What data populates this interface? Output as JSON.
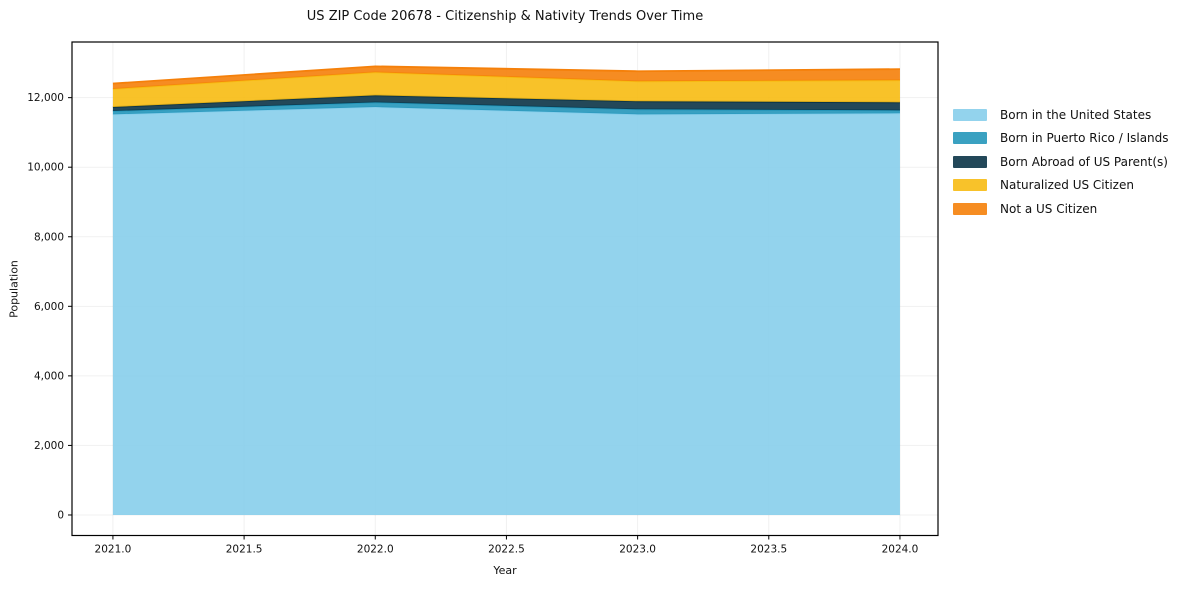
{
  "chart_data": {
    "type": "area",
    "stacked": true,
    "title": "US ZIP Code 20678 - Citizenship & Nativity Trends Over Time",
    "xlabel": "Year",
    "ylabel": "Population",
    "x": [
      2021,
      2022,
      2023,
      2024
    ],
    "series": [
      {
        "name": "Born in the United States",
        "color": "#87ceeb",
        "values": [
          11520,
          11730,
          11520,
          11550
        ]
      },
      {
        "name": "Born in Puerto Rico / Islands",
        "color": "#2496ba",
        "values": [
          95,
          135,
          145,
          85
        ]
      },
      {
        "name": "Born Abroad of US Parent(s)",
        "color": "#0b3447",
        "values": [
          115,
          200,
          230,
          230
        ]
      },
      {
        "name": "Naturalized US Citizen",
        "color": "#f7bb12",
        "values": [
          520,
          665,
          575,
          635
        ]
      },
      {
        "name": "Not a US Citizen",
        "color": "#f5800a",
        "values": [
          155,
          170,
          290,
          320
        ]
      }
    ],
    "x_ticks": {
      "values": [
        2021.0,
        2021.5,
        2022.0,
        2022.5,
        2023.0,
        2023.5,
        2024.0
      ],
      "labels": [
        "2021.0",
        "2021.5",
        "2022.0",
        "2022.5",
        "2023.0",
        "2023.5",
        "2024.0"
      ]
    },
    "y_ticks": {
      "values": [
        0,
        2000,
        4000,
        6000,
        8000,
        10000,
        12000
      ],
      "labels": [
        "0",
        "2,000",
        "4,000",
        "6,000",
        "8,000",
        "10,000",
        "12,000"
      ]
    },
    "xlim": [
      2020.844,
      2024.145
    ],
    "ylim": [
      -590,
      13600
    ],
    "grid": true,
    "legend_position": "right-outside",
    "fill_opacity": 0.9,
    "grid_color": "rgba(0,0,0,0.06)",
    "spine_color": "#000000",
    "text_color": "#111111",
    "background": "#ffffff"
  }
}
